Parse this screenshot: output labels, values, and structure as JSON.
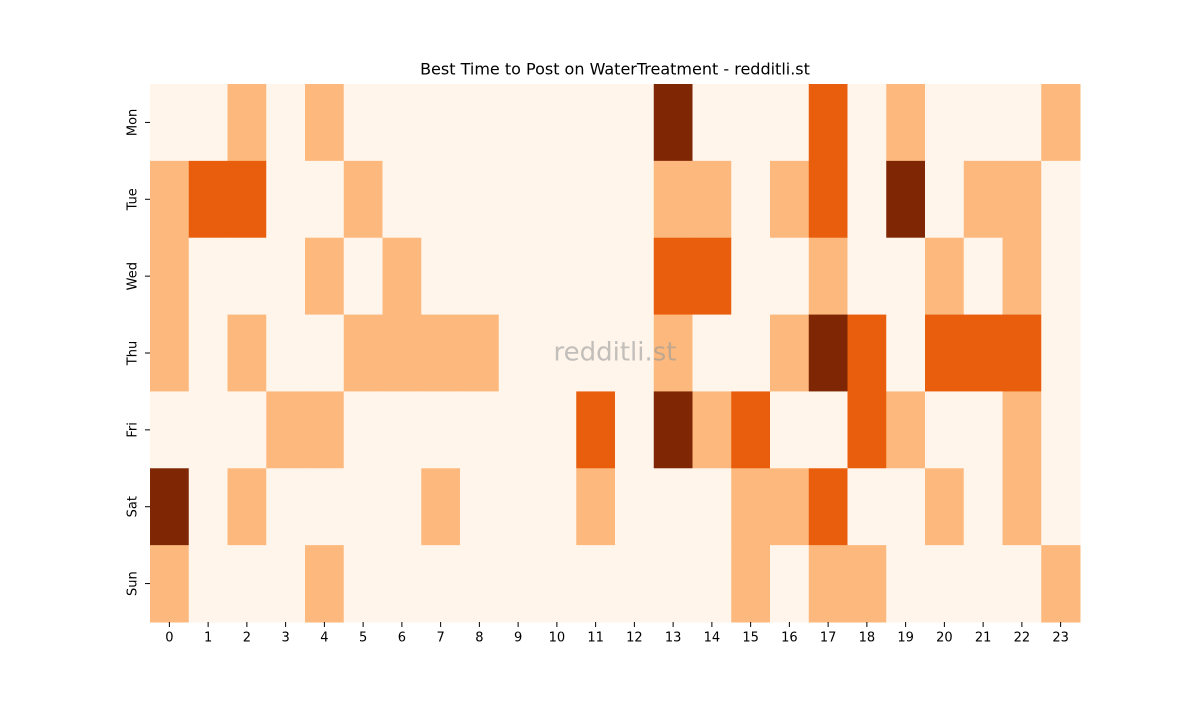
{
  "chart_data": {
    "type": "heatmap",
    "title": "Best Time to Post on WaterTreatment - redditli.st",
    "watermark": "redditli.st",
    "categories": [
      0,
      1,
      2,
      3,
      4,
      5,
      6,
      7,
      8,
      9,
      10,
      11,
      12,
      13,
      14,
      15,
      16,
      17,
      18,
      19,
      20,
      21,
      22,
      23
    ],
    "rows": [
      "Mon",
      "Tue",
      "Wed",
      "Thu",
      "Fri",
      "Sat",
      "Sun"
    ],
    "values": [
      [
        0,
        0,
        1,
        0,
        1,
        0,
        0,
        0,
        0,
        0,
        0,
        0,
        0,
        3,
        0,
        0,
        0,
        2,
        0,
        1,
        0,
        0,
        0,
        1
      ],
      [
        1,
        2,
        2,
        0,
        0,
        1,
        0,
        0,
        0,
        0,
        0,
        0,
        0,
        1,
        1,
        0,
        1,
        2,
        0,
        3,
        0,
        1,
        1,
        0
      ],
      [
        1,
        0,
        0,
        0,
        1,
        0,
        1,
        0,
        0,
        0,
        0,
        0,
        0,
        2,
        2,
        0,
        0,
        1,
        0,
        0,
        1,
        0,
        1,
        0
      ],
      [
        1,
        0,
        1,
        0,
        0,
        1,
        1,
        1,
        1,
        0,
        0,
        0,
        0,
        1,
        0,
        0,
        1,
        3,
        2,
        0,
        2,
        2,
        2,
        0
      ],
      [
        0,
        0,
        0,
        1,
        1,
        0,
        0,
        0,
        0,
        0,
        0,
        2,
        0,
        3,
        1,
        2,
        0,
        0,
        2,
        1,
        0,
        0,
        1,
        0
      ],
      [
        3,
        0,
        1,
        0,
        0,
        0,
        0,
        1,
        0,
        0,
        0,
        1,
        0,
        0,
        0,
        1,
        1,
        2,
        0,
        0,
        1,
        0,
        1,
        0
      ],
      [
        1,
        0,
        0,
        0,
        1,
        0,
        0,
        0,
        0,
        0,
        0,
        0,
        0,
        0,
        0,
        1,
        0,
        1,
        1,
        0,
        0,
        0,
        0,
        1
      ]
    ],
    "color_scale": [
      "#fff5eb",
      "#fdb97d",
      "#e95e0d",
      "#7f2704"
    ]
  }
}
